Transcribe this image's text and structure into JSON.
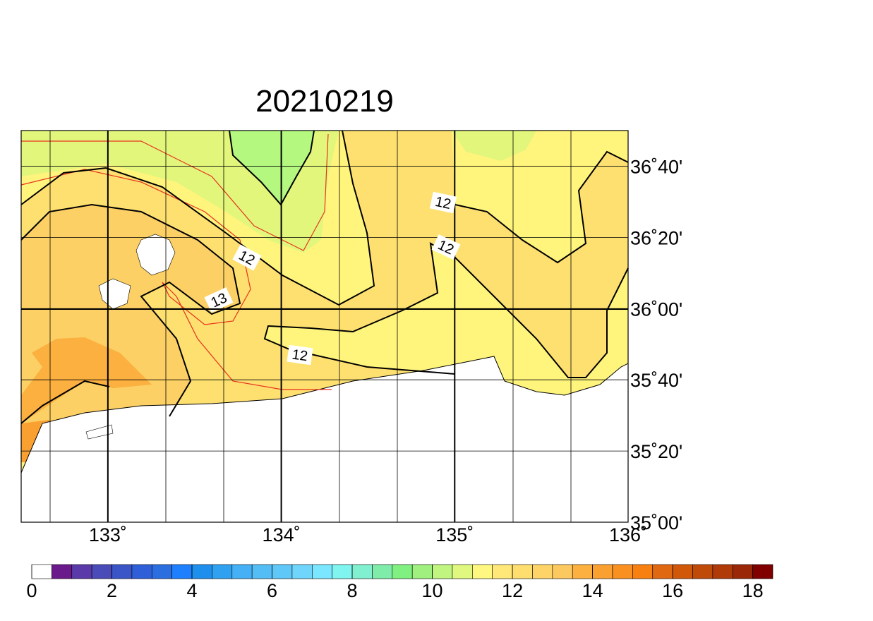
{
  "chart_data": {
    "type": "contour-map",
    "title": "20210219",
    "xlim": [
      132.5,
      136
    ],
    "ylim": [
      35,
      36.8333
    ],
    "xticks": [
      {
        "value": 133,
        "label": "133˚"
      },
      {
        "value": 134,
        "label": "134˚"
      },
      {
        "value": 135,
        "label": "135˚"
      },
      {
        "value": 136,
        "label": "136˚"
      }
    ],
    "yticks": [
      {
        "value": 35,
        "label": "35˚00'"
      },
      {
        "value": 35.3333,
        "label": "35˚20'"
      },
      {
        "value": 35.6667,
        "label": "35˚40'"
      },
      {
        "value": 36,
        "label": "36˚00'"
      },
      {
        "value": 36.3333,
        "label": "36˚20'"
      },
      {
        "value": 36.6667,
        "label": "36˚40'"
      }
    ],
    "contour_labels": [
      "12",
      "12",
      "12",
      "12",
      "13"
    ],
    "colorbar": {
      "lim": [
        0,
        18.5
      ],
      "ticks": [
        0,
        2,
        4,
        6,
        8,
        10,
        12,
        14,
        16,
        18
      ],
      "colors": [
        "#ffffff",
        "#6b1a8c",
        "#5a3aa8",
        "#4a4ab8",
        "#3a55c8",
        "#2f5fd8",
        "#2a6ee0",
        "#1e80ff",
        "#1f8fee",
        "#30a0f0",
        "#45b0f5",
        "#55bdf5",
        "#60c8f8",
        "#70d5fa",
        "#7ae6ff",
        "#80f5f0",
        "#80f0d0",
        "#80ecaa",
        "#80f080",
        "#a0f080",
        "#c0f580",
        "#e0f880",
        "#fff880",
        "#ffe878",
        "#ffde70",
        "#fed468",
        "#fcc860",
        "#fbb040",
        "#faa030",
        "#f99020",
        "#f88010",
        "#e06810",
        "#d05808",
        "#c04a08",
        "#b03a08",
        "#9a2808",
        "#800000"
      ]
    }
  }
}
